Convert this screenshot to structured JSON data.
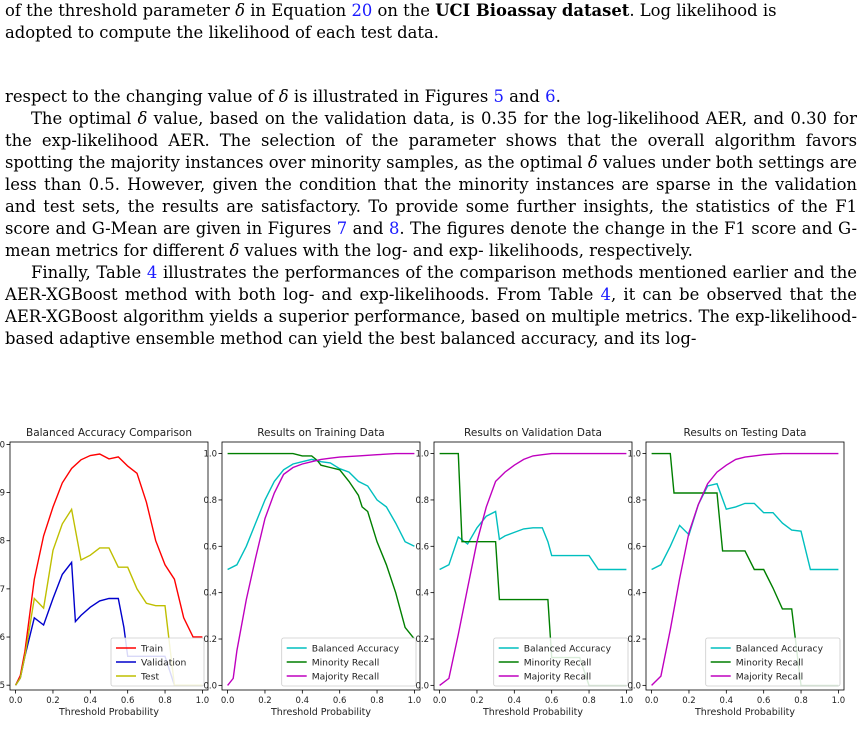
{
  "caption_tail": {
    "line1_a": "of the threshold parameter ",
    "line1_delta": "δ",
    "line1_b": " in Equation ",
    "line1_ref": "20",
    "line1_c": " on the ",
    "line1_bold": "UCI Bioassay dataset",
    "line1_d": ". Log likelihood is",
    "line2": "adopted to compute the likelihood of each test data."
  },
  "body": {
    "p1_a": "respect to the changing value of ",
    "p1_delta": "δ",
    "p1_b": " is illustrated in Figures ",
    "p1_ref1": "5",
    "p1_c": " and ",
    "p1_ref2": "6",
    "p1_d": ".",
    "p2_a": "The optimal ",
    "p2_delta": "δ",
    "p2_b": " value, based on the validation data, is 0.35 for the log-likelihood AER, and 0.30 for the exp-likelihood AER. The selection of the parameter shows that the overall algorithm favors spotting the majority instances over minority samples, as the optimal ",
    "p2_delta2": "δ",
    "p2_c": " values under both settings are less than 0.5. However, given the condition that the minority instances are sparse in the validation and test sets, the results are satisfactory. To provide some further insights, the statistics of the F1 score and G-Mean are given in Figures ",
    "p2_ref1": "7",
    "p2_d": " and ",
    "p2_ref2": "8",
    "p2_e": ". The figures denote the change in the F1 score and G-mean metrics for different ",
    "p2_delta3": "δ",
    "p2_f": " values with the log- and exp- likelihoods, respectively.",
    "p3_a": "Finally, Table ",
    "p3_ref1": "4",
    "p3_b": " illustrates the performances of the comparison methods mentioned earlier and the AER-XGBoost method with both log- and exp-likelihoods. From Table ",
    "p3_ref2": "4",
    "p3_c": ", it can be observed that the AER-XGBoost algorithm yields a superior performance, based on multiple metrics. The exp-likelihood-based adaptive ensemble method can yield the best balanced accuracy, and its log-"
  },
  "chart_data": [
    {
      "type": "line",
      "title": "Balanced Accuracy Comparison",
      "xlabel": "Threshold Probability",
      "ylabel": "",
      "xlim": [
        -0.03,
        1.03
      ],
      "ylim": [
        0.49,
        1.005
      ],
      "xticks": [
        "0.0",
        "0.2",
        "0.4",
        "0.6",
        "0.8",
        "1.0"
      ],
      "yticks": [
        "0.5",
        "0.6",
        "0.7",
        "0.8",
        "0.9",
        "1.0"
      ],
      "legend": "lower-right",
      "series": [
        {
          "name": "Train",
          "color": "#ff0000",
          "x": [
            0,
            0.025,
            0.05,
            0.1,
            0.15,
            0.2,
            0.25,
            0.3,
            0.35,
            0.4,
            0.45,
            0.5,
            0.55,
            0.6,
            0.65,
            0.7,
            0.75,
            0.8,
            0.85,
            0.9,
            0.95,
            1.0
          ],
          "y": [
            0.5,
            0.52,
            0.57,
            0.72,
            0.81,
            0.87,
            0.92,
            0.95,
            0.968,
            0.977,
            0.98,
            0.97,
            0.974,
            0.955,
            0.94,
            0.88,
            0.8,
            0.75,
            0.72,
            0.64,
            0.6,
            0.6
          ]
        },
        {
          "name": "Validation",
          "color": "#0000cc",
          "x": [
            0,
            0.025,
            0.05,
            0.1,
            0.15,
            0.2,
            0.25,
            0.3,
            0.32,
            0.35,
            0.4,
            0.45,
            0.5,
            0.55,
            0.58,
            0.6,
            0.65,
            0.7,
            0.75,
            0.8,
            0.85,
            0.9,
            0.95,
            1.0
          ],
          "y": [
            0.5,
            0.515,
            0.56,
            0.64,
            0.625,
            0.68,
            0.73,
            0.755,
            0.632,
            0.645,
            0.662,
            0.675,
            0.68,
            0.68,
            0.62,
            0.56,
            0.56,
            0.56,
            0.56,
            0.56,
            0.5,
            0.5,
            0.5,
            0.5
          ]
        },
        {
          "name": "Test",
          "color": "#bfbf00",
          "x": [
            0,
            0.025,
            0.05,
            0.1,
            0.15,
            0.2,
            0.25,
            0.3,
            0.35,
            0.4,
            0.45,
            0.5,
            0.55,
            0.6,
            0.65,
            0.7,
            0.75,
            0.8,
            0.85,
            0.9,
            0.95,
            1.0
          ],
          "y": [
            0.5,
            0.515,
            0.56,
            0.68,
            0.66,
            0.78,
            0.835,
            0.865,
            0.76,
            0.77,
            0.785,
            0.785,
            0.745,
            0.745,
            0.7,
            0.67,
            0.665,
            0.665,
            0.5,
            0.5,
            0.5,
            0.5
          ]
        }
      ]
    },
    {
      "type": "line",
      "title": "Results on Training Data",
      "xlabel": "Threshold Probability",
      "ylabel": "",
      "xlim": [
        -0.03,
        1.03
      ],
      "ylim": [
        -0.02,
        1.05
      ],
      "xticks": [
        "0.0",
        "0.2",
        "0.4",
        "0.6",
        "0.8",
        "1.0"
      ],
      "yticks": [
        "0.0",
        "0.2",
        "0.4",
        "0.6",
        "0.8",
        "1.0"
      ],
      "legend": "lower-right",
      "series": [
        {
          "name": "Balanced Accuracy",
          "color": "#00bfbf",
          "x": [
            0,
            0.05,
            0.1,
            0.15,
            0.2,
            0.25,
            0.3,
            0.35,
            0.4,
            0.45,
            0.5,
            0.55,
            0.6,
            0.65,
            0.7,
            0.75,
            0.8,
            0.85,
            0.9,
            0.95,
            1.0
          ],
          "y": [
            0.5,
            0.52,
            0.6,
            0.7,
            0.8,
            0.88,
            0.93,
            0.955,
            0.965,
            0.975,
            0.965,
            0.96,
            0.935,
            0.92,
            0.88,
            0.86,
            0.8,
            0.77,
            0.7,
            0.62,
            0.6
          ]
        },
        {
          "name": "Minority Recall",
          "color": "#007f00",
          "x": [
            0,
            0.1,
            0.2,
            0.3,
            0.35,
            0.4,
            0.45,
            0.48,
            0.5,
            0.55,
            0.6,
            0.65,
            0.7,
            0.72,
            0.75,
            0.8,
            0.85,
            0.9,
            0.95,
            1.0
          ],
          "y": [
            1.0,
            1.0,
            1.0,
            1.0,
            1.0,
            0.99,
            0.99,
            0.97,
            0.95,
            0.94,
            0.93,
            0.88,
            0.82,
            0.77,
            0.75,
            0.62,
            0.52,
            0.4,
            0.25,
            0.2
          ]
        },
        {
          "name": "Majority Recall",
          "color": "#bf00bf",
          "x": [
            0,
            0.03,
            0.05,
            0.1,
            0.15,
            0.2,
            0.25,
            0.3,
            0.35,
            0.4,
            0.45,
            0.5,
            0.55,
            0.6,
            0.7,
            0.8,
            0.9,
            1.0
          ],
          "y": [
            0.0,
            0.03,
            0.15,
            0.37,
            0.55,
            0.72,
            0.83,
            0.91,
            0.94,
            0.955,
            0.965,
            0.975,
            0.98,
            0.985,
            0.99,
            0.995,
            1.0,
            1.0
          ]
        }
      ]
    },
    {
      "type": "line",
      "title": "Results on Validation Data",
      "xlabel": "Threshold Probability",
      "ylabel": "",
      "xlim": [
        -0.03,
        1.03
      ],
      "ylim": [
        -0.02,
        1.05
      ],
      "xticks": [
        "0.0",
        "0.2",
        "0.4",
        "0.6",
        "0.8",
        "1.0"
      ],
      "yticks": [
        "0.0",
        "0.2",
        "0.4",
        "0.6",
        "0.8",
        "1.0"
      ],
      "legend": "lower-right",
      "series": [
        {
          "name": "Balanced Accuracy",
          "color": "#00bfbf",
          "x": [
            0,
            0.05,
            0.1,
            0.15,
            0.2,
            0.25,
            0.3,
            0.32,
            0.35,
            0.4,
            0.45,
            0.5,
            0.55,
            0.58,
            0.6,
            0.65,
            0.7,
            0.75,
            0.8,
            0.85,
            0.9,
            0.95,
            1.0
          ],
          "y": [
            0.5,
            0.52,
            0.64,
            0.61,
            0.68,
            0.73,
            0.75,
            0.63,
            0.645,
            0.66,
            0.675,
            0.68,
            0.68,
            0.62,
            0.56,
            0.56,
            0.56,
            0.56,
            0.56,
            0.5,
            0.5,
            0.5,
            0.5
          ]
        },
        {
          "name": "Minority Recall",
          "color": "#007f00",
          "x": [
            0,
            0.1,
            0.12,
            0.2,
            0.3,
            0.32,
            0.4,
            0.5,
            0.58,
            0.6,
            0.65,
            0.7,
            0.75,
            0.8,
            0.85,
            0.9,
            1.0
          ],
          "y": [
            1.0,
            1.0,
            0.62,
            0.62,
            0.62,
            0.37,
            0.37,
            0.37,
            0.37,
            0.12,
            0.12,
            0.12,
            0.12,
            0.0,
            0.0,
            0.0,
            0.0
          ]
        },
        {
          "name": "Majority Recall",
          "color": "#bf00bf",
          "x": [
            0,
            0.05,
            0.1,
            0.15,
            0.2,
            0.25,
            0.3,
            0.35,
            0.4,
            0.45,
            0.5,
            0.55,
            0.6,
            0.7,
            0.8,
            0.9,
            1.0
          ],
          "y": [
            0.0,
            0.03,
            0.22,
            0.42,
            0.62,
            0.77,
            0.88,
            0.92,
            0.95,
            0.975,
            0.99,
            0.995,
            1.0,
            1.0,
            1.0,
            1.0,
            1.0
          ]
        }
      ]
    },
    {
      "type": "line",
      "title": "Results on Testing Data",
      "xlabel": "Threshold Probability",
      "ylabel": "",
      "xlim": [
        -0.03,
        1.03
      ],
      "ylim": [
        -0.02,
        1.05
      ],
      "xticks": [
        "0.0",
        "0.2",
        "0.4",
        "0.6",
        "0.8",
        "1.0"
      ],
      "yticks": [
        "0.0",
        "0.2",
        "0.4",
        "0.6",
        "0.8",
        "1.0"
      ],
      "legend": "lower-right",
      "series": [
        {
          "name": "Balanced Accuracy",
          "color": "#00bfbf",
          "x": [
            0,
            0.05,
            0.1,
            0.15,
            0.2,
            0.25,
            0.3,
            0.35,
            0.4,
            0.45,
            0.5,
            0.55,
            0.6,
            0.65,
            0.7,
            0.75,
            0.8,
            0.85,
            0.9,
            0.95,
            1.0
          ],
          "y": [
            0.5,
            0.52,
            0.6,
            0.69,
            0.65,
            0.78,
            0.86,
            0.87,
            0.76,
            0.77,
            0.785,
            0.785,
            0.745,
            0.745,
            0.7,
            0.67,
            0.665,
            0.5,
            0.5,
            0.5,
            0.5
          ]
        },
        {
          "name": "Minority Recall",
          "color": "#007f00",
          "x": [
            0,
            0.1,
            0.12,
            0.2,
            0.3,
            0.35,
            0.38,
            0.45,
            0.5,
            0.55,
            0.6,
            0.65,
            0.7,
            0.75,
            0.8,
            0.85,
            0.9,
            0.95,
            1.0
          ],
          "y": [
            1.0,
            1.0,
            0.83,
            0.83,
            0.83,
            0.83,
            0.58,
            0.58,
            0.58,
            0.5,
            0.5,
            0.42,
            0.33,
            0.33,
            0.0,
            0.0,
            0.0,
            0.0,
            0.0
          ]
        },
        {
          "name": "Majority Recall",
          "color": "#bf00bf",
          "x": [
            0,
            0.05,
            0.1,
            0.15,
            0.2,
            0.25,
            0.3,
            0.35,
            0.4,
            0.45,
            0.5,
            0.55,
            0.6,
            0.7,
            0.8,
            0.9,
            1.0
          ],
          "y": [
            0.0,
            0.04,
            0.24,
            0.46,
            0.66,
            0.78,
            0.87,
            0.92,
            0.95,
            0.975,
            0.985,
            0.99,
            0.995,
            1.0,
            1.0,
            1.0,
            1.0
          ]
        }
      ]
    }
  ]
}
